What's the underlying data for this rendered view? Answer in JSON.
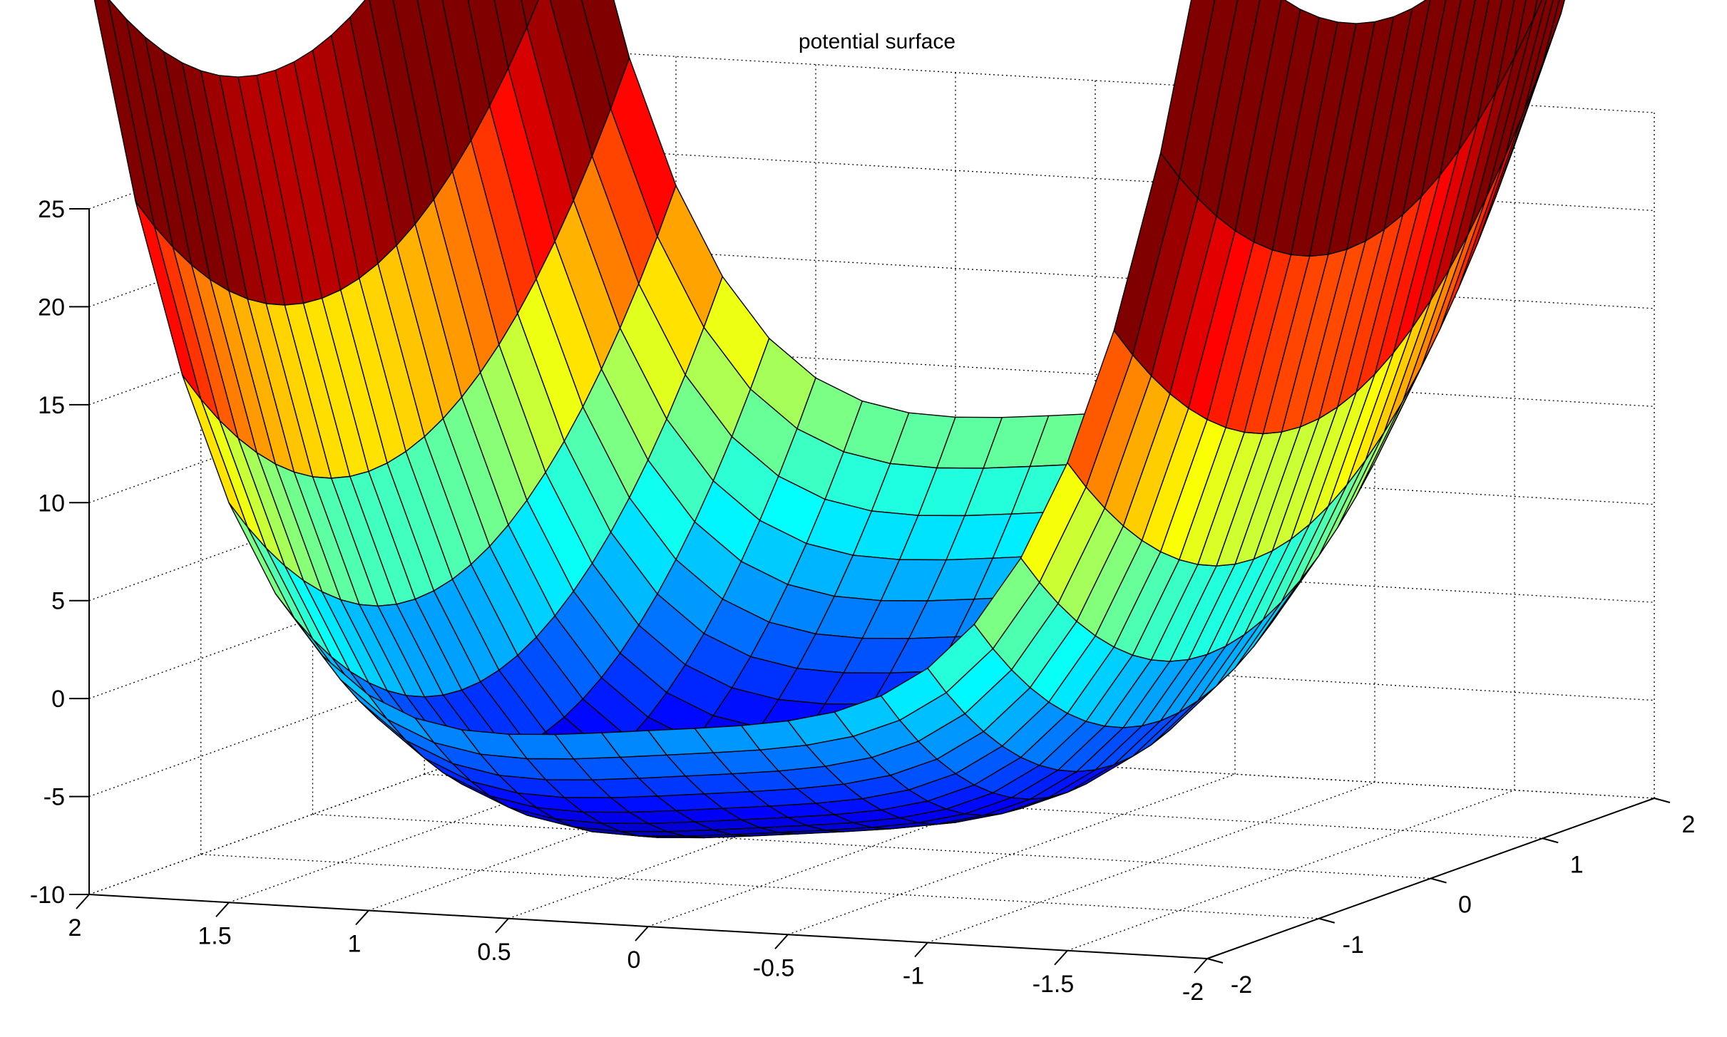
{
  "chart_data": {
    "type": "surface",
    "title": "potential surface",
    "xlabel": "",
    "ylabel": "",
    "zlabel": "",
    "x_axis": {
      "range": [
        -2,
        2
      ],
      "ticks": [
        "2",
        "1.5",
        "1",
        "0.5",
        "0",
        "-0.5",
        "-1",
        "-1.5",
        "-2"
      ]
    },
    "y_axis": {
      "range": [
        -2,
        2
      ],
      "ticks": [
        "-2",
        "-1",
        "0",
        "1",
        "2"
      ]
    },
    "z_axis": {
      "range": [
        -10,
        25
      ],
      "ticks": [
        "25",
        "20",
        "15",
        "10",
        "5",
        "0",
        "-5",
        "-10"
      ]
    },
    "grid": true,
    "colormap": "jet",
    "grid_resolution": 25,
    "function": "z = 2.5*x^4 - 1.5*x + 3*y^2 + 2*y - 8",
    "colors": {
      "background": "#ffffff",
      "edge": "#000000",
      "grid": "#000000"
    }
  }
}
